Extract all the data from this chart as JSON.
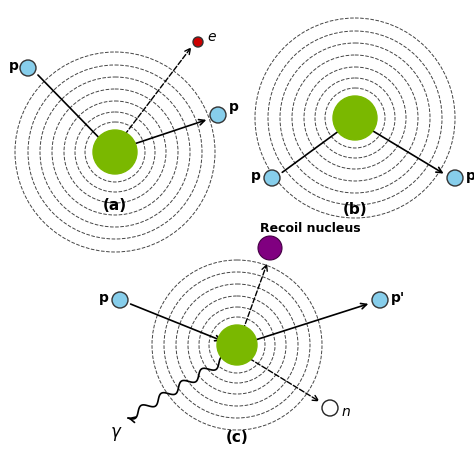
{
  "bg_color": "#ffffff",
  "nucleus_color": "#7ab800",
  "proton_color": "#87ceeb",
  "electron_color": "#cc0000",
  "neutron_color": "#ffffff",
  "recoil_color": "#800080",
  "ring_color": "#444444",
  "label_a": "(a)",
  "label_b": "(b)",
  "label_c": "(c)",
  "recoil_label": "Recoil nucleus",
  "figsize": [
    4.74,
    4.5
  ],
  "dpi": 100
}
